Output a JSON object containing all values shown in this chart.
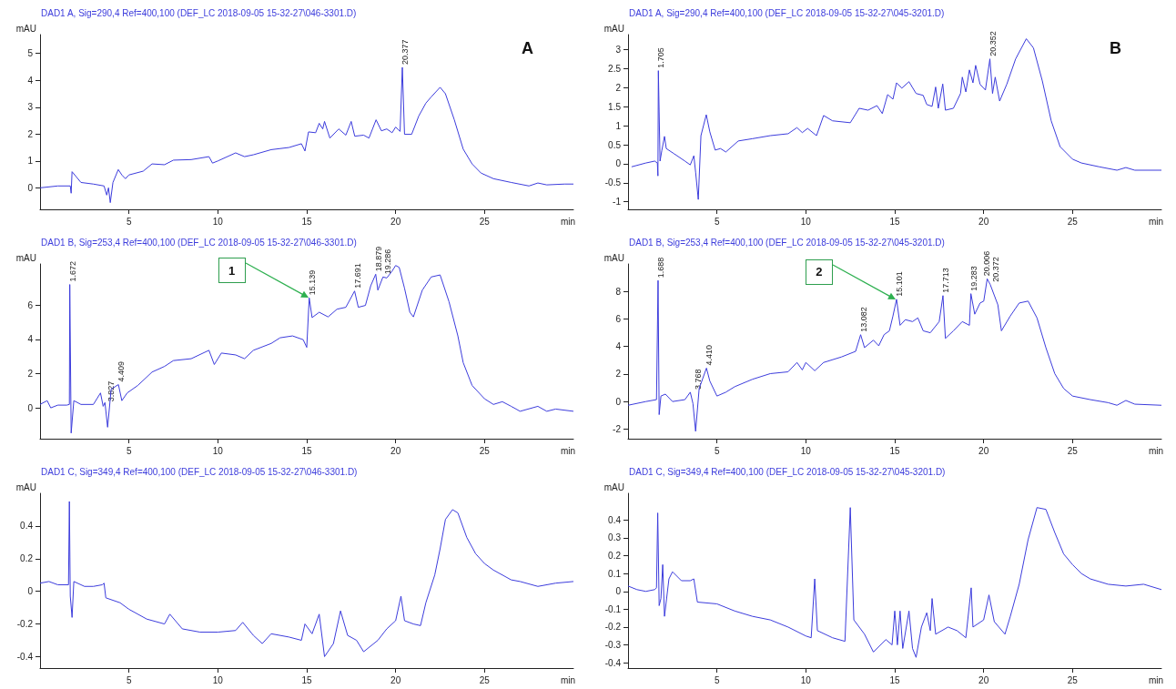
{
  "chart_data": [
    {
      "type": "line",
      "title": "DAD1 A, Sig=290,4 Ref=400,100 (DEF_LC 2018-09-05 15-32-27\\046-3301.D)",
      "xlabel": "min",
      "ylabel": "mAU",
      "xlim": [
        0,
        30
      ],
      "xticks": [
        5,
        10,
        15,
        20,
        25
      ],
      "ylim": [
        -0.8,
        5.7
      ],
      "yticks": [
        0,
        1,
        2,
        3,
        4,
        5
      ],
      "marker": "none",
      "line_style": "solid",
      "annotations": [
        "A",
        {
          "text": "20.377",
          "x": 20.377,
          "y": 4.48
        }
      ],
      "series": [
        {
          "color": "#3c3cdc",
          "x": [
            0,
            1,
            1.7,
            1.75,
            1.8,
            2.3,
            3,
            3.6,
            3.75,
            3.85,
            3.95,
            4.1,
            4.4,
            4.6,
            4.8,
            5,
            5.8,
            6.3,
            7,
            7.5,
            8.5,
            9.5,
            9.7,
            10,
            11,
            11.5,
            12,
            13,
            14,
            14.7,
            14.9,
            15.1,
            15.5,
            15.7,
            15.9,
            16,
            16.3,
            16.8,
            17.2,
            17.5,
            17.7,
            18.2,
            18.5,
            18.9,
            19.2,
            19.5,
            19.8,
            20,
            20.25,
            20.377,
            20.5,
            20.9,
            21.3,
            21.7,
            22,
            22.5,
            22.8,
            23.3,
            23.8,
            24.3,
            24.8,
            25.5,
            26.5,
            27.5,
            28,
            28.5,
            29.5,
            30
          ],
          "values": [
            0,
            0.07,
            0.07,
            -0.2,
            0.6,
            0.2,
            0.14,
            0.07,
            -0.27,
            0,
            -0.55,
            0.2,
            0.68,
            0.48,
            0.34,
            0.48,
            0.62,
            0.89,
            0.86,
            1.03,
            1.05,
            1.16,
            0.92,
            1,
            1.3,
            1.16,
            1.23,
            1.42,
            1.5,
            1.64,
            1.37,
            2.08,
            2.05,
            2.4,
            2.19,
            2.47,
            1.85,
            2.19,
            1.96,
            2.47,
            1.92,
            1.96,
            1.85,
            2.53,
            2.12,
            2.19,
            2.05,
            2.26,
            2.1,
            4.48,
            1.99,
            1.99,
            2.67,
            3.15,
            3.38,
            3.74,
            3.5,
            2.53,
            1.44,
            0.89,
            0.55,
            0.34,
            0.2,
            0.07,
            0.18,
            0.11,
            0.14,
            0.14
          ]
        }
      ]
    },
    {
      "type": "line",
      "title": "DAD1 A, Sig=290,4 Ref=400,100 (DEF_LC 2018-09-05 15-32-27\\045-3201.D)",
      "xlabel": "min",
      "ylabel": "mAU",
      "xlim": [
        0,
        30
      ],
      "xticks": [
        5,
        10,
        15,
        20,
        25
      ],
      "ylim": [
        -1.2,
        3.4
      ],
      "yticks": [
        -1,
        -0.5,
        0,
        0.5,
        1,
        1.5,
        2,
        2.5,
        3
      ],
      "marker": "none",
      "line_style": "solid",
      "annotations": [
        "B",
        {
          "text": "1.705",
          "x": 1.705,
          "y": 2.45
        },
        {
          "text": "20.352",
          "x": 20.352,
          "y": 2.76
        }
      ],
      "series": [
        {
          "color": "#3c3cdc",
          "x": [
            0.2,
            1,
            1.5,
            1.65,
            1.68,
            1.705,
            1.8,
            1.9,
            2.05,
            2.15,
            2.6,
            3.2,
            3.5,
            3.7,
            3.8,
            3.95,
            4.1,
            4.4,
            4.6,
            4.9,
            5.2,
            5.5,
            6.2,
            7,
            8,
            9,
            9.5,
            9.8,
            10.1,
            10.6,
            11,
            11.5,
            12.5,
            13,
            13.5,
            14,
            14.3,
            14.6,
            14.9,
            15.1,
            15.4,
            15.8,
            16.2,
            16.6,
            16.8,
            17.1,
            17.3,
            17.45,
            17.7,
            17.85,
            18.3,
            18.7,
            18.8,
            19,
            19.2,
            19.4,
            19.55,
            19.8,
            20.1,
            20.352,
            20.5,
            20.65,
            20.9,
            21.3,
            21.8,
            22.4,
            22.8,
            23.3,
            23.8,
            24.3,
            25,
            25.5,
            26.5,
            27.5,
            28,
            28.5,
            30
          ],
          "values": [
            -0.08,
            0.02,
            0.07,
            0.02,
            -0.32,
            2.45,
            0.07,
            0.35,
            0.72,
            0.4,
            0.26,
            0.07,
            -0.03,
            0.21,
            -0.22,
            -0.94,
            0.74,
            1.29,
            0.84,
            0.36,
            0.4,
            0.31,
            0.6,
            0.66,
            0.74,
            0.79,
            0.95,
            0.82,
            0.93,
            0.74,
            1.27,
            1.13,
            1.08,
            1.46,
            1.41,
            1.53,
            1.32,
            1.82,
            1.7,
            2.13,
            1.99,
            2.16,
            1.85,
            1.8,
            1.56,
            1.51,
            2.02,
            1.46,
            2.1,
            1.41,
            1.46,
            1.85,
            2.28,
            1.89,
            2.47,
            2.13,
            2.59,
            2.09,
            1.94,
            2.76,
            1.85,
            2.28,
            1.65,
            2.09,
            2.76,
            3.29,
            3.05,
            2.18,
            1.13,
            0.45,
            0.12,
            0.02,
            -0.08,
            -0.17,
            -0.1,
            -0.17,
            -0.17
          ]
        }
      ]
    },
    {
      "type": "line",
      "title": "DAD1 B, Sig=253,4 Ref=400,100 (DEF_LC 2018-09-05 15-32-27\\046-3301.D)",
      "xlabel": "min",
      "ylabel": "mAU",
      "xlim": [
        0,
        30
      ],
      "xticks": [
        5,
        10,
        15,
        20,
        25
      ],
      "ylim": [
        -1.8,
        8.4
      ],
      "yticks": [
        0,
        2,
        4,
        6
      ],
      "marker": "none",
      "line_style": "solid",
      "annotations": [
        {
          "text": "1.672",
          "x": 1.672,
          "y": 7.2
        },
        {
          "text": "3.827",
          "x": 3.827,
          "y": 0.2
        },
        {
          "text": "4.409",
          "x": 4.409,
          "y": 1.36
        },
        {
          "text": "15.139",
          "x": 15.139,
          "y": 6.42
        },
        {
          "text": "17.691",
          "x": 17.691,
          "y": 6.82
        },
        {
          "text": "18.879",
          "x": 18.879,
          "y": 7.8
        },
        {
          "text": "19.286",
          "x": 19.286,
          "y": 7.64
        },
        {
          "text": "1",
          "x": 15.139,
          "y": 6.42
        }
      ],
      "series": [
        {
          "color": "#3c3cdc",
          "x": [
            0,
            0.4,
            0.6,
            1,
            1.5,
            1.65,
            1.672,
            1.75,
            1.9,
            2.3,
            3,
            3.4,
            3.55,
            3.65,
            3.8,
            4,
            4.409,
            4.6,
            4.9,
            5.5,
            6.3,
            7,
            7.5,
            8.5,
            9.5,
            9.8,
            10.2,
            11,
            11.5,
            12,
            13,
            13.5,
            14.2,
            14.8,
            15,
            15.139,
            15.3,
            15.7,
            16.2,
            16.7,
            17.2,
            17.691,
            17.9,
            18.3,
            18.6,
            18.879,
            19,
            19.286,
            19.5,
            19.8,
            20,
            20.2,
            20.5,
            20.8,
            21,
            21.5,
            22,
            22.5,
            23,
            23.5,
            23.8,
            24.3,
            25,
            25.5,
            26,
            26.5,
            27,
            28,
            28.5,
            29,
            30
          ],
          "values": [
            0.2,
            0.42,
            0,
            0.16,
            0.16,
            0.2,
            7.2,
            -1.47,
            0.42,
            0.2,
            0.2,
            0.87,
            0.09,
            0.31,
            -1.13,
            1.09,
            1.36,
            0.42,
            0.87,
            1.31,
            2.09,
            2.42,
            2.76,
            2.87,
            3.36,
            2.53,
            3.2,
            3.09,
            2.87,
            3.36,
            3.76,
            4.09,
            4.2,
            3.98,
            3.53,
            6.42,
            5.27,
            5.58,
            5.31,
            5.76,
            5.87,
            6.82,
            5.87,
            5.98,
            7.13,
            7.8,
            6.87,
            7.64,
            7.58,
            7.98,
            8.31,
            8.2,
            6.98,
            5.58,
            5.31,
            6.87,
            7.64,
            7.76,
            6.2,
            4.2,
            2.64,
            1.31,
            0.53,
            0.2,
            0.36,
            0.09,
            -0.2,
            0.09,
            -0.2,
            -0.07,
            -0.2
          ]
        }
      ]
    },
    {
      "type": "line",
      "title": "DAD1 B, Sig=253,4 Ref=400,100 (DEF_LC 2018-09-05 15-32-27\\045-3201.D)",
      "xlabel": "min",
      "ylabel": "mAU",
      "xlim": [
        0,
        30
      ],
      "xticks": [
        5,
        10,
        15,
        20,
        25
      ],
      "ylim": [
        -2.7,
        10
      ],
      "yticks": [
        -2,
        0,
        2,
        4,
        6,
        8
      ],
      "marker": "none",
      "line_style": "solid",
      "annotations": [
        {
          "text": "1.688",
          "x": 1.688,
          "y": 8.8
        },
        {
          "text": "3.768",
          "x": 3.768,
          "y": 0.68
        },
        {
          "text": "4.410",
          "x": 4.41,
          "y": 2.43
        },
        {
          "text": "13.082",
          "x": 13.082,
          "y": 4.86
        },
        {
          "text": "15.101",
          "x": 15.101,
          "y": 7.43
        },
        {
          "text": "17.713",
          "x": 17.713,
          "y": 7.7
        },
        {
          "text": "19.283",
          "x": 19.283,
          "y": 7.84
        },
        {
          "text": "20.006",
          "x": 20.006,
          "y": 8.92
        },
        {
          "text": "20.372",
          "x": 20.372,
          "y": 8.5
        },
        {
          "text": "2",
          "x": 15.101,
          "y": 7.43
        }
      ],
      "series": [
        {
          "color": "#3c3cdc",
          "x": [
            0,
            1,
            1.6,
            1.688,
            1.75,
            1.85,
            2.1,
            2.5,
            3.2,
            3.5,
            3.65,
            3.8,
            4,
            4.41,
            4.6,
            5,
            5.5,
            6,
            7,
            8,
            9,
            9.5,
            9.8,
            10,
            10.5,
            11,
            12,
            12.8,
            13.082,
            13.3,
            13.8,
            14.1,
            14.4,
            14.7,
            14.9,
            15.101,
            15.3,
            15.6,
            16,
            16.3,
            16.6,
            17,
            17.5,
            17.713,
            17.85,
            18.3,
            18.8,
            19.2,
            19.283,
            19.5,
            19.8,
            20.006,
            20.2,
            20.372,
            20.8,
            21,
            21.5,
            22,
            22.5,
            23,
            23.5,
            24,
            24.5,
            25,
            26,
            27,
            27.5,
            28,
            28.5,
            30
          ],
          "values": [
            -0.27,
            0,
            0.14,
            8.8,
            -0.95,
            0.4,
            0.54,
            0,
            0.14,
            0.68,
            -0.14,
            -2.16,
            0.95,
            2.43,
            1.49,
            0.4,
            0.68,
            1.08,
            1.62,
            2.03,
            2.16,
            2.84,
            2.3,
            2.84,
            2.24,
            2.84,
            3.24,
            3.65,
            4.86,
            3.92,
            4.46,
            4.05,
            4.86,
            5.14,
            6.22,
            7.43,
            5.54,
            5.95,
            5.81,
            6.08,
            5.14,
            5,
            5.81,
            7.7,
            4.59,
            5.14,
            5.81,
            5.54,
            7.84,
            6.35,
            7.16,
            7.3,
            8.92,
            8.5,
            7.03,
            5.14,
            6.22,
            7.16,
            7.3,
            6.08,
            3.92,
            2.03,
            0.95,
            0.4,
            0.14,
            -0.08,
            -0.27,
            0.08,
            -0.19,
            -0.27
          ]
        }
      ]
    },
    {
      "type": "line",
      "title": "DAD1 C, Sig=349,4 Ref=400,100 (DEF_LC 2018-09-05 15-32-27\\046-3301.D)",
      "xlabel": "min",
      "ylabel": "mAU",
      "xlim": [
        0,
        30
      ],
      "xticks": [
        5,
        10,
        15,
        20,
        25
      ],
      "ylim": [
        -0.47,
        0.6
      ],
      "yticks": [
        -0.4,
        -0.2,
        0,
        0.2,
        0.4
      ],
      "marker": "none",
      "line_style": "solid",
      "series": [
        {
          "color": "#3c3cdc",
          "x": [
            0,
            0.5,
            1,
            1.6,
            1.65,
            1.7,
            1.8,
            1.9,
            2.5,
            3,
            3.5,
            3.6,
            3.7,
            4.5,
            5,
            6,
            7,
            7.3,
            8,
            9,
            10,
            11,
            11.4,
            12,
            12.5,
            13,
            14,
            14.7,
            14.9,
            15.3,
            15.7,
            16,
            16.5,
            16.9,
            17.3,
            17.8,
            18.2,
            19,
            19.5,
            20,
            20.3,
            20.5,
            21,
            21.4,
            21.7,
            22.2,
            22.5,
            22.8,
            23.2,
            23.5,
            24,
            24.5,
            25,
            25.5,
            26.5,
            27,
            28,
            29,
            30
          ],
          "values": [
            0.05,
            0.06,
            0.04,
            0.04,
            0.55,
            -0.03,
            -0.16,
            0.06,
            0.03,
            0.03,
            0.04,
            0.05,
            -0.04,
            -0.07,
            -0.11,
            -0.17,
            -0.2,
            -0.14,
            -0.23,
            -0.25,
            -0.25,
            -0.24,
            -0.19,
            -0.27,
            -0.32,
            -0.26,
            -0.28,
            -0.3,
            -0.2,
            -0.26,
            -0.14,
            -0.4,
            -0.32,
            -0.12,
            -0.27,
            -0.3,
            -0.37,
            -0.3,
            -0.23,
            -0.18,
            -0.03,
            -0.18,
            -0.2,
            -0.21,
            -0.07,
            0.1,
            0.26,
            0.44,
            0.5,
            0.48,
            0.33,
            0.23,
            0.17,
            0.13,
            0.07,
            0.06,
            0.03,
            0.05,
            0.06
          ]
        }
      ]
    },
    {
      "type": "line",
      "title": "DAD1 C, Sig=349,4 Ref=400,100 (DEF_LC 2018-09-05 15-32-27\\045-3201.D)",
      "xlabel": "min",
      "ylabel": "mAU",
      "xlim": [
        0,
        30
      ],
      "xticks": [
        5,
        10,
        15,
        20,
        25
      ],
      "ylim": [
        -0.43,
        0.55
      ],
      "yticks": [
        -0.4,
        -0.3,
        -0.2,
        -0.1,
        0,
        0.1,
        0.2,
        0.3,
        0.4
      ],
      "marker": "none",
      "line_style": "solid",
      "series": [
        {
          "color": "#3c3cdc",
          "x": [
            0,
            0.5,
            1,
            1.5,
            1.6,
            1.67,
            1.75,
            1.85,
            1.95,
            2.05,
            2.3,
            2.5,
            3,
            3.5,
            3.7,
            3.9,
            5,
            6,
            7,
            8,
            9,
            10,
            10.3,
            10.5,
            10.65,
            11.5,
            12.2,
            12.5,
            12.7,
            13.3,
            13.8,
            14.5,
            14.85,
            15,
            15.15,
            15.3,
            15.45,
            15.8,
            16,
            16.2,
            16.5,
            16.8,
            17,
            17.1,
            17.3,
            18,
            18.5,
            19,
            19.3,
            19.4,
            20,
            20.3,
            20.6,
            21.2,
            21.5,
            22,
            22.5,
            23,
            23.5,
            24,
            24.5,
            25,
            25.5,
            26,
            27,
            28,
            29,
            30
          ],
          "values": [
            0.03,
            0.01,
            0,
            0.01,
            0.02,
            0.44,
            -0.08,
            -0.04,
            0.15,
            -0.14,
            0.07,
            0.11,
            0.06,
            0.06,
            0.07,
            -0.06,
            -0.07,
            -0.11,
            -0.14,
            -0.16,
            -0.2,
            -0.25,
            -0.26,
            0.07,
            -0.22,
            -0.26,
            -0.28,
            0.47,
            -0.16,
            -0.24,
            -0.34,
            -0.27,
            -0.3,
            -0.11,
            -0.3,
            -0.11,
            -0.32,
            -0.11,
            -0.32,
            -0.37,
            -0.2,
            -0.12,
            -0.22,
            -0.04,
            -0.24,
            -0.2,
            -0.22,
            -0.26,
            0.02,
            -0.2,
            -0.16,
            -0.02,
            -0.17,
            -0.24,
            -0.14,
            0.04,
            0.29,
            0.47,
            0.46,
            0.33,
            0.21,
            0.15,
            0.1,
            0.07,
            0.04,
            0.03,
            0.04,
            0.01
          ]
        }
      ]
    }
  ]
}
